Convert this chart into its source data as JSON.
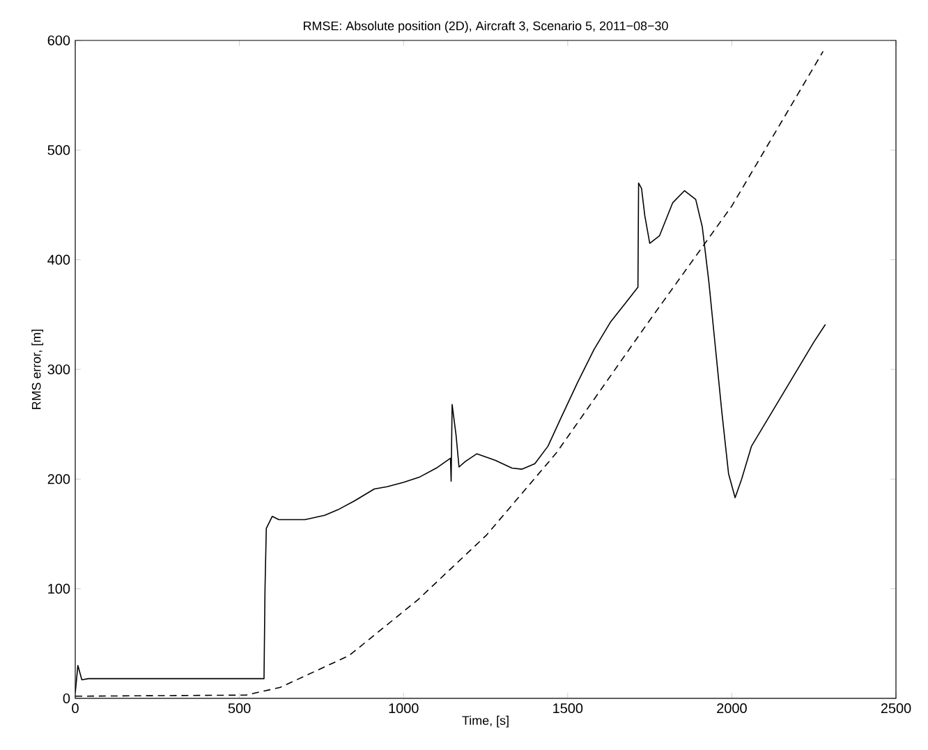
{
  "chart_data": {
    "type": "line",
    "title": "RMSE: Absolute position (2D), Aircraft 3, Scenario 5, 2011−08−30",
    "xlabel": "Time,  [s]",
    "ylabel": "RMS error,  [m]",
    "xlim": [
      0,
      2500
    ],
    "ylim": [
      0,
      600
    ],
    "xticks": [
      0,
      500,
      1000,
      1500,
      2000,
      2500
    ],
    "yticks": [
      0,
      100,
      200,
      300,
      400,
      500,
      600
    ],
    "series": [
      {
        "color": "#000000",
        "line_style": "solid",
        "x": [
          0,
          8,
          20,
          40,
          575,
          578,
          582,
          600,
          620,
          700,
          760,
          800,
          850,
          911,
          950,
          1000,
          1050,
          1100,
          1143,
          1145,
          1148,
          1160,
          1169,
          1188,
          1223,
          1280,
          1330,
          1360,
          1400,
          1440,
          1480,
          1530,
          1580,
          1630,
          1680,
          1714,
          1716,
          1725,
          1735,
          1750,
          1780,
          1820,
          1856,
          1890,
          1910,
          1930,
          1950,
          1970,
          1990,
          2010,
          2030,
          2060,
          2100,
          2150,
          2200,
          2250,
          2285
        ],
        "values": [
          5,
          30,
          17,
          18,
          18,
          100,
          155,
          166,
          163,
          163,
          167,
          172,
          180,
          191,
          193,
          197,
          202,
          210,
          219,
          198,
          268,
          240,
          211,
          216,
          223,
          217,
          210,
          209,
          214,
          230,
          256,
          288,
          318,
          343,
          362,
          375,
          470,
          465,
          440,
          415,
          422,
          452,
          463,
          455,
          430,
          380,
          320,
          260,
          205,
          183,
          200,
          230,
          250,
          275,
          300,
          325,
          341
        ]
      },
      {
        "color": "#000000",
        "line_style": "dashed",
        "x": [
          0,
          520,
          624,
          834,
          1044,
          1253,
          1466,
          1736,
          2000,
          2278
        ],
        "values": [
          2,
          3,
          10,
          39,
          90,
          149,
          224,
          339,
          449,
          590
        ]
      }
    ]
  }
}
